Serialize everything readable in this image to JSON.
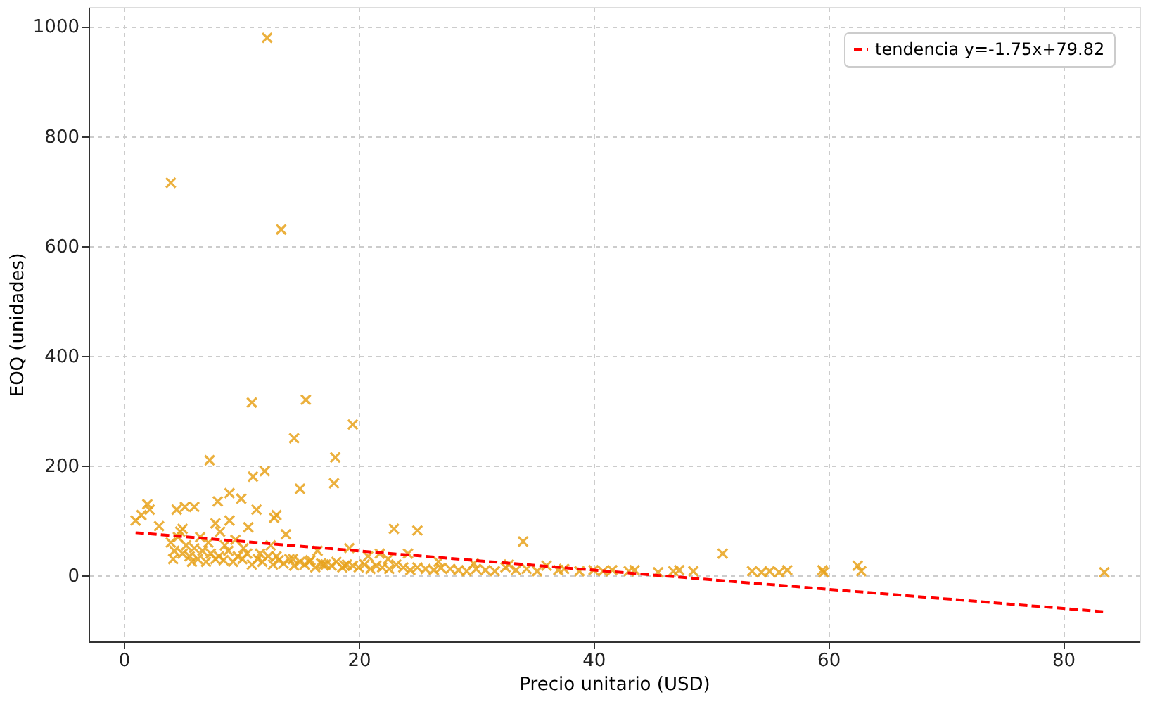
{
  "chart_data": {
    "type": "scatter",
    "xlabel": "Precio unitario (USD)",
    "ylabel": "EOQ (unidades)",
    "xlim": [
      -3,
      86.5
    ],
    "ylim": [
      -120,
      1035
    ],
    "xticks": [
      0,
      20,
      40,
      60,
      80
    ],
    "yticks": [
      0,
      200,
      400,
      600,
      800,
      1000
    ],
    "grid": true,
    "legend": "top right",
    "marker": "cross",
    "series": [
      {
        "color": "#e8a31c",
        "x": [
          12.2,
          4.0,
          13.4,
          10.9,
          15.5,
          19.5,
          14.5,
          7.3,
          18.0,
          12.0,
          11.0,
          15.0,
          17.9,
          13.0,
          12.8,
          11.3,
          9.0,
          10.0,
          8.0,
          6.0,
          4.5,
          5.2,
          2.0,
          2.2,
          1.0,
          1.5,
          5.0,
          9.0,
          8.2,
          23.0,
          25.0,
          34.0,
          51.0,
          3.0,
          4.0,
          4.3,
          4.6,
          5.0,
          5.3,
          5.6,
          6.0,
          6.3,
          6.7,
          7.0,
          7.4,
          7.8,
          8.1,
          8.5,
          8.9,
          9.3,
          9.7,
          10.1,
          10.5,
          10.9,
          11.4,
          11.8,
          12.3,
          12.7,
          13.2,
          13.6,
          14.1,
          14.5,
          15.0,
          15.4,
          15.9,
          16.3,
          16.8,
          17.2,
          17.7,
          18.1,
          18.6,
          19.0,
          19.5,
          20.0,
          20.5,
          21.0,
          21.5,
          22.0,
          22.6,
          23.2,
          23.8,
          24.4,
          25.0,
          25.7,
          26.4,
          27.0,
          27.8,
          28.5,
          29.2,
          30.0,
          30.8,
          31.6,
          32.5,
          33.4,
          34.3,
          35.2,
          37.0,
          37.5,
          38.8,
          40.0,
          40.8,
          41.6,
          43.0,
          43.5,
          45.5,
          46.8,
          47.3,
          48.5,
          53.5,
          54.3,
          55.0,
          55.8,
          56.5,
          59.5,
          59.6,
          62.5,
          62.8,
          83.5,
          4.2,
          5.8,
          7.2,
          8.6,
          10.2,
          11.6,
          13.0,
          14.4,
          15.8,
          17.0,
          18.8,
          20.8,
          22.5,
          24.2,
          26.8,
          29.8,
          32.8,
          36.0,
          4.8,
          6.5,
          9.5,
          12.5,
          16.5,
          19.2,
          21.8,
          7.8,
          10.6,
          13.8
        ],
        "values": [
          979,
          715,
          630,
          315,
          320,
          275,
          250,
          210,
          215,
          190,
          180,
          158,
          168,
          110,
          105,
          120,
          150,
          140,
          135,
          125,
          120,
          125,
          130,
          120,
          100,
          110,
          85,
          100,
          80,
          85,
          82,
          62,
          40,
          90,
          60,
          45,
          70,
          40,
          55,
          35,
          50,
          30,
          45,
          25,
          40,
          30,
          35,
          28,
          45,
          25,
          35,
          30,
          40,
          20,
          30,
          25,
          35,
          20,
          28,
          22,
          30,
          18,
          25,
          20,
          28,
          15,
          22,
          20,
          18,
          25,
          15,
          20,
          18,
          15,
          20,
          12,
          18,
          15,
          12,
          20,
          15,
          10,
          15,
          12,
          10,
          14,
          12,
          10,
          8,
          12,
          10,
          8,
          15,
          10,
          12,
          8,
          10,
          12,
          8,
          10,
          8,
          10,
          8,
          10,
          6,
          8,
          10,
          8,
          8,
          6,
          8,
          6,
          10,
          10,
          6,
          18,
          8,
          6,
          30,
          25,
          60,
          55,
          50,
          40,
          35,
          30,
          25,
          20,
          18,
          35,
          30,
          40,
          25,
          22,
          20,
          18,
          80,
          70,
          65,
          55,
          45,
          50,
          40,
          95,
          88,
          75
        ]
      },
      {
        "name": "tendencia y=-1.75x+79.82",
        "type": "line",
        "marker": "none",
        "line_style": "dashed",
        "color": "#ff0000",
        "x": [
          1.0,
          83.5
        ],
        "values": [
          78,
          -66
        ]
      }
    ]
  }
}
